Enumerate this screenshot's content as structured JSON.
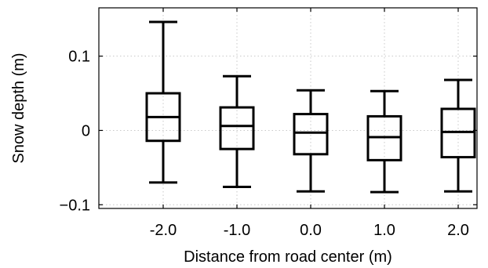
{
  "chart_data": {
    "type": "boxplot",
    "title": "",
    "xlabel": "Distance from road center (m)",
    "ylabel": "Snow depth (m)",
    "categories": [
      "-2.0",
      "-1.0",
      "0.0",
      "1.0",
      "2.0"
    ],
    "ylim": [
      -0.105,
      0.165
    ],
    "yticks": [
      {
        "value": -0.1,
        "label": "−0.1"
      },
      {
        "value": 0,
        "label": "0"
      },
      {
        "value": 0.1,
        "label": "0.1"
      }
    ],
    "grid": true,
    "boxes": [
      {
        "category": "-2.0",
        "whisker_low": -0.07,
        "q1": -0.014,
        "median": 0.018,
        "q3": 0.05,
        "whisker_high": 0.146
      },
      {
        "category": "-1.0",
        "whisker_low": -0.076,
        "q1": -0.025,
        "median": 0.006,
        "q3": 0.031,
        "whisker_high": 0.073
      },
      {
        "category": "0.0",
        "whisker_low": -0.082,
        "q1": -0.032,
        "median": -0.003,
        "q3": 0.022,
        "whisker_high": 0.054
      },
      {
        "category": "1.0",
        "whisker_low": -0.083,
        "q1": -0.04,
        "median": -0.009,
        "q3": 0.019,
        "whisker_high": 0.053
      },
      {
        "category": "2.0",
        "whisker_low": -0.082,
        "q1": -0.036,
        "median": -0.002,
        "q3": 0.029,
        "whisker_high": 0.068
      }
    ]
  }
}
